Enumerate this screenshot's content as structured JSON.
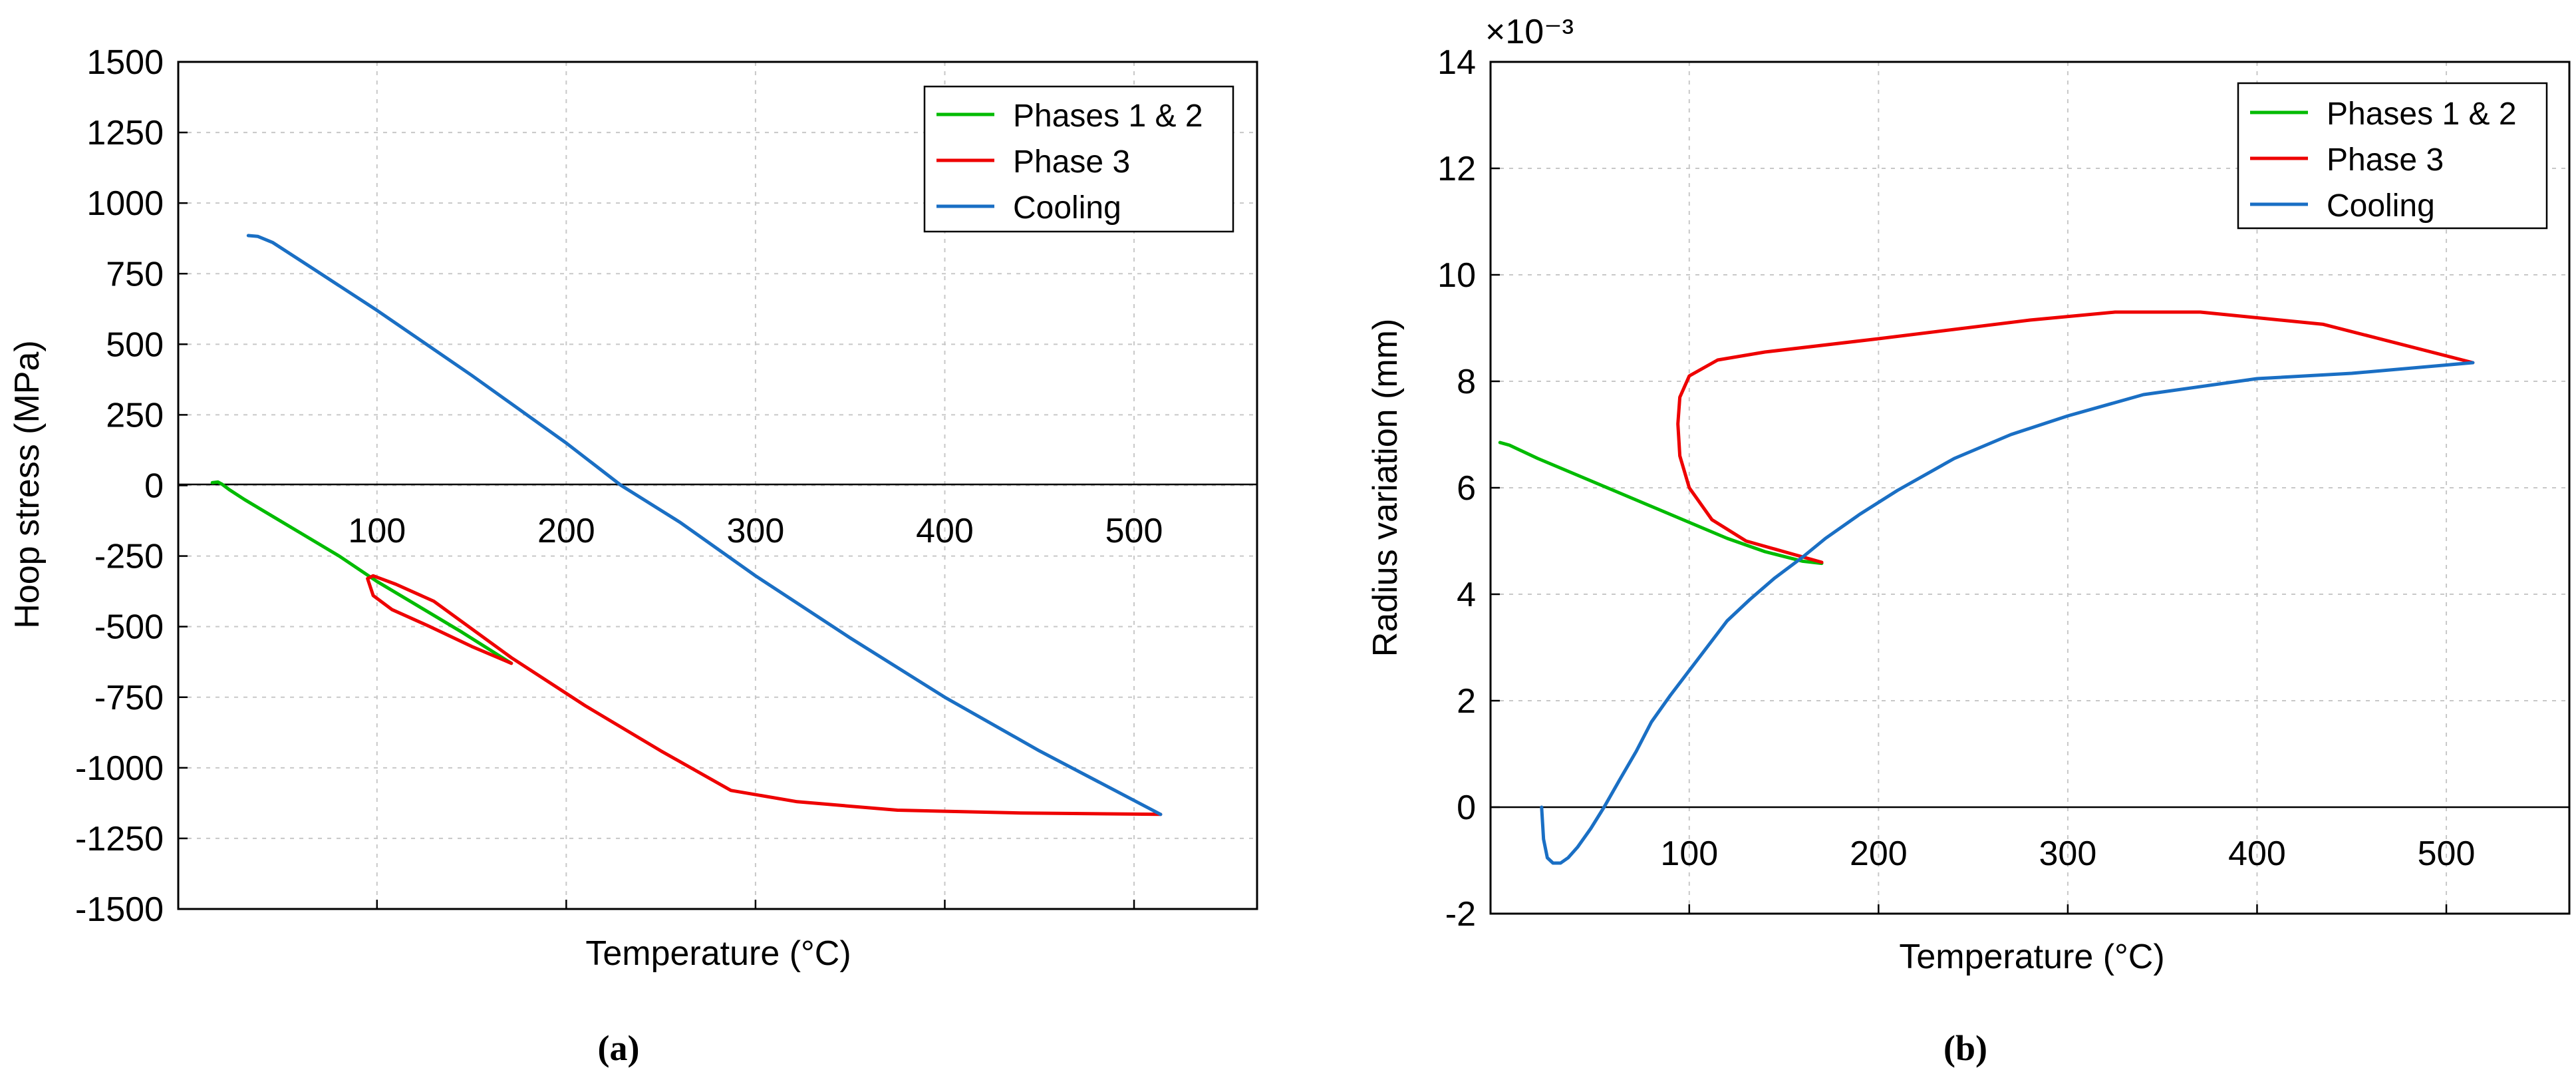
{
  "chart_data": [
    {
      "type": "line",
      "caption": "(a)",
      "xlabel": "Temperature (°C)",
      "ylabel": "Hoop stress (MPa)",
      "xlim": [
        -5,
        565
      ],
      "ylim": [
        -1500,
        1500
      ],
      "xticks": [
        100,
        200,
        300,
        400,
        500
      ],
      "xtick_labels": [
        "100",
        "200",
        "300",
        "400",
        "500"
      ],
      "yticks": [
        1500,
        1250,
        1000,
        750,
        500,
        250,
        0,
        -250,
        -500,
        -750,
        -1000,
        -1250,
        -1500
      ],
      "ytick_labels": [
        "1500",
        "1250",
        "1000",
        "750",
        "500",
        "250",
        "0",
        "-250",
        "-500",
        "-750",
        "-1000",
        "-1250",
        "-1500"
      ],
      "grid": true,
      "legend_position": "top-right",
      "series": [
        {
          "name": "Phases 1 & 2",
          "color": "#00bb00",
          "x": [
            13,
            16,
            18,
            22,
            30,
            45,
            60,
            80,
            100,
            120,
            145,
            171
          ],
          "y": [
            10,
            12,
            5,
            -15,
            -50,
            -110,
            -170,
            -250,
            -340,
            -420,
            -520,
            -630
          ]
        },
        {
          "name": "Phase 3",
          "color": "#ee0000",
          "x": [
            171,
            150,
            128,
            108,
            98,
            95,
            98,
            110,
            130,
            171,
            210,
            250,
            287,
            322,
            375,
            440,
            514
          ],
          "y": [
            -630,
            -570,
            -500,
            -440,
            -390,
            -330,
            -320,
            -350,
            -410,
            -610,
            -780,
            -940,
            -1080,
            -1120,
            -1150,
            -1160,
            -1165
          ]
        },
        {
          "name": "Cooling",
          "color": "#1a6fc4",
          "x": [
            32,
            37,
            45,
            68,
            100,
            150,
            200,
            229,
            260,
            300,
            350,
            400,
            450,
            514
          ],
          "y": [
            885,
            882,
            860,
            760,
            620,
            390,
            150,
            0,
            -130,
            -320,
            -540,
            -750,
            -940,
            -1165
          ]
        }
      ]
    },
    {
      "type": "line",
      "caption": "(b)",
      "xlabel": "Temperature (°C)",
      "ylabel": "Radius variation (mm)",
      "exponent_label": "×10⁻³",
      "xlim": [
        -5,
        565
      ],
      "ylim": [
        -2,
        14
      ],
      "xticks": [
        100,
        200,
        300,
        400,
        500
      ],
      "xtick_labels": [
        "100",
        "200",
        "300",
        "400",
        "500"
      ],
      "yticks": [
        14,
        12,
        10,
        8,
        6,
        4,
        2,
        0,
        -2
      ],
      "ytick_labels": [
        "14",
        "12",
        "10",
        "8",
        "6",
        "4",
        "2",
        "0",
        "-2"
      ],
      "grid": true,
      "legend_position": "top-right",
      "series": [
        {
          "name": "Phases 1 & 2",
          "color": "#00bb00",
          "x": [
            0,
            5,
            20,
            40,
            60,
            80,
            100,
            120,
            140,
            160,
            170
          ],
          "y": [
            6.85,
            6.8,
            6.55,
            6.25,
            5.95,
            5.65,
            5.35,
            5.05,
            4.8,
            4.62,
            4.58
          ]
        },
        {
          "name": "Phase 3",
          "color": "#ee0000",
          "x": [
            170,
            150,
            130,
            112,
            100,
            95,
            94,
            95,
            100,
            115,
            140,
            200,
            280,
            325,
            370,
            435,
            514
          ],
          "y": [
            4.6,
            4.8,
            5.0,
            5.4,
            6.0,
            6.6,
            7.2,
            7.7,
            8.1,
            8.4,
            8.55,
            8.8,
            9.15,
            9.3,
            9.3,
            9.07,
            8.35
          ]
        },
        {
          "name": "Cooling",
          "color": "#1a6fc4",
          "x": [
            22,
            23,
            25,
            28,
            32,
            36,
            41,
            48,
            55,
            63,
            72,
            80,
            90,
            105,
            120,
            132,
            145,
            160,
            172,
            190,
            210,
            240,
            270,
            300,
            340,
            400,
            450,
            514
          ],
          "y": [
            0,
            -0.6,
            -0.95,
            -1.05,
            -1.05,
            -0.95,
            -0.75,
            -0.4,
            0,
            0.5,
            1.05,
            1.6,
            2.1,
            2.8,
            3.5,
            3.9,
            4.3,
            4.7,
            5.05,
            5.5,
            5.95,
            6.55,
            7.0,
            7.35,
            7.75,
            8.05,
            8.15,
            8.35
          ]
        }
      ]
    }
  ]
}
